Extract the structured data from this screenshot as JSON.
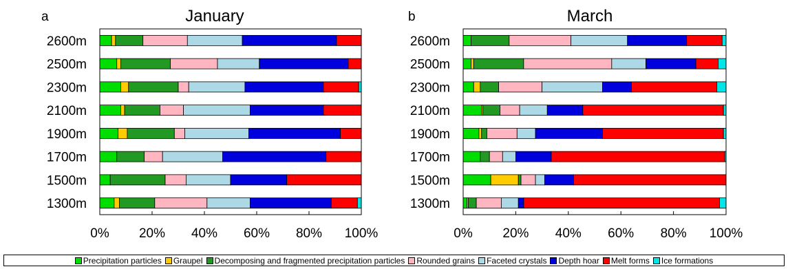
{
  "chart_data": [
    {
      "type": "bar",
      "panel_letter": "a",
      "title": "January",
      "orientation": "horizontal",
      "stacked": true,
      "categories": [
        "2600m",
        "2500m",
        "2300m",
        "2100m",
        "1900m",
        "1700m",
        "1500m",
        "1300m"
      ],
      "xlim": [
        0,
        100
      ],
      "xticks": [
        "0%",
        "20%",
        "40%",
        "60%",
        "80%",
        "100%"
      ],
      "series": [
        {
          "name": "Precipitation particles",
          "color": "#00dd00",
          "values": [
            4.5,
            6.5,
            8,
            8,
            7,
            6.5,
            4,
            5.5
          ]
        },
        {
          "name": "Graupel",
          "color": "#ffcc00",
          "values": [
            1.5,
            1.5,
            3,
            1.5,
            3.5,
            0,
            0,
            2
          ]
        },
        {
          "name": "Decomposing and fragmented precipitation particles",
          "color": "#229922",
          "values": [
            10.5,
            19,
            19,
            13.5,
            18,
            10.5,
            21,
            13.5
          ]
        },
        {
          "name": "Rounded grains",
          "color": "#ffb6c1",
          "values": [
            17,
            18,
            4,
            9,
            4,
            7,
            8,
            20
          ]
        },
        {
          "name": "Faceted crystals",
          "color": "#add8e6",
          "values": [
            21,
            16,
            21.5,
            25.5,
            24.5,
            23,
            17,
            16.5
          ]
        },
        {
          "name": "Depth hoar",
          "color": "#0000dd",
          "values": [
            36,
            34,
            30,
            28,
            35,
            39.5,
            21.5,
            31
          ]
        },
        {
          "name": "Melt forms",
          "color": "#ff0000",
          "values": [
            9.5,
            5,
            13.5,
            14.5,
            8,
            13.5,
            28.5,
            10
          ]
        },
        {
          "name": "Ice formations",
          "color": "#00e5e5",
          "values": [
            0,
            0,
            1,
            0,
            0,
            0,
            0,
            1.5
          ]
        }
      ]
    },
    {
      "type": "bar",
      "panel_letter": "b",
      "title": "March",
      "orientation": "horizontal",
      "stacked": true,
      "categories": [
        "2600m",
        "2500m",
        "2300m",
        "2100m",
        "1900m",
        "1700m",
        "1500m",
        "1300m"
      ],
      "xlim": [
        0,
        100
      ],
      "xticks": [
        "0%",
        "20%",
        "40%",
        "60%",
        "80%",
        "100%"
      ],
      "series": [
        {
          "name": "Precipitation particles",
          "color": "#00dd00",
          "values": [
            3,
            3,
            4,
            7,
            6,
            6.5,
            10.5,
            1.5
          ]
        },
        {
          "name": "Graupel",
          "color": "#ffcc00",
          "values": [
            0,
            1,
            2.5,
            0.5,
            1,
            0,
            10.5,
            0.5
          ]
        },
        {
          "name": "Decomposing and fragmented precipitation particles",
          "color": "#229922",
          "values": [
            14.5,
            19,
            7,
            6.5,
            2,
            3.5,
            1,
            3
          ]
        },
        {
          "name": "Rounded grains",
          "color": "#ffb6c1",
          "values": [
            23.5,
            33.5,
            16.5,
            7.5,
            11.5,
            5,
            5.5,
            9.5
          ]
        },
        {
          "name": "Faceted crystals",
          "color": "#add8e6",
          "values": [
            21.5,
            13,
            23,
            10.5,
            7,
            5,
            3.5,
            6.5
          ]
        },
        {
          "name": "Depth hoar",
          "color": "#0000dd",
          "values": [
            22.5,
            19,
            11,
            13.5,
            25.5,
            13.5,
            11,
            2
          ]
        },
        {
          "name": "Melt forms",
          "color": "#ff0000",
          "values": [
            13.5,
            8.5,
            32.5,
            53.5,
            46,
            66,
            58,
            74.5
          ]
        },
        {
          "name": "Ice formations",
          "color": "#00e5e5",
          "values": [
            1.5,
            3,
            3.5,
            1,
            1,
            0.5,
            0,
            2.5
          ]
        }
      ]
    }
  ],
  "legend": [
    {
      "label": "Precipitation particles",
      "color": "#00dd00"
    },
    {
      "label": "Graupel",
      "color": "#ffcc00"
    },
    {
      "label": "Decomposing and fragmented precipitation particles",
      "color": "#229922"
    },
    {
      "label": "Rounded grains",
      "color": "#ffb6c1"
    },
    {
      "label": "Faceted crystals",
      "color": "#add8e6"
    },
    {
      "label": "Depth hoar",
      "color": "#0000dd"
    },
    {
      "label": "Melt forms",
      "color": "#ff0000"
    },
    {
      "label": "Ice formations",
      "color": "#00e5e5"
    }
  ]
}
